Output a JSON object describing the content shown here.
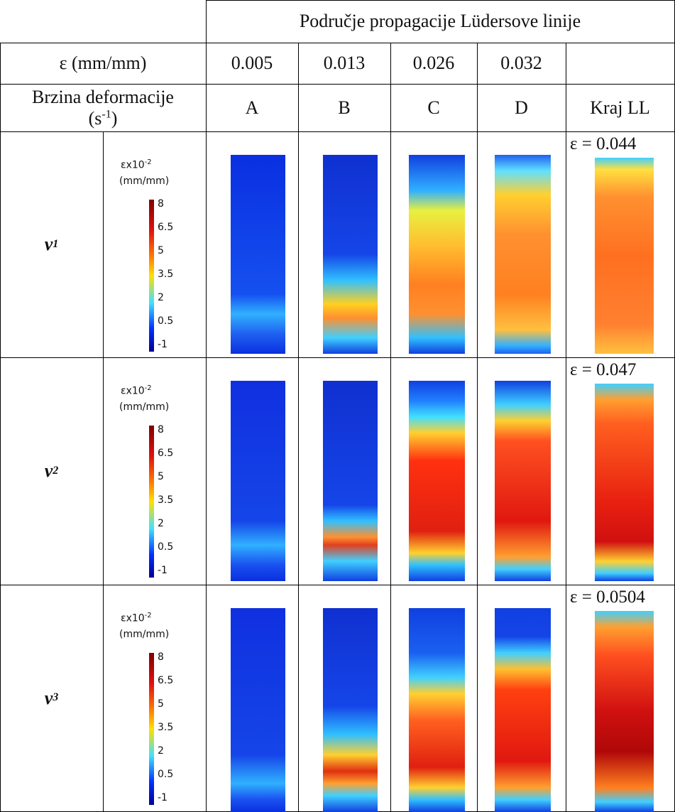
{
  "header": {
    "title": "Područje propagacije Lüdersove linije"
  },
  "table": {
    "strain_label": "ε (mm/mm)",
    "strains": [
      0.005,
      0.013,
      0.026,
      0.032
    ],
    "rate_label": "Brzina deformacije",
    "rate_unit_open": "(s",
    "rate_unit_exp": "-1",
    "rate_unit_close": ")",
    "stages": [
      "A",
      "B",
      "C",
      "D",
      "Kraj LL"
    ],
    "rows": [
      {
        "rate_symbol": "v",
        "rate_index": 1,
        "end_strain": "ε = 0.044"
      },
      {
        "rate_symbol": "v",
        "rate_index": 2,
        "end_strain": "ε = 0.047"
      },
      {
        "rate_symbol": "v",
        "rate_index": 3,
        "end_strain": "ε = 0.0504"
      }
    ]
  },
  "colorbar": {
    "label": "εx10",
    "exp": "-2",
    "unit": "(mm/mm)",
    "ticks": [
      8,
      6.5,
      5,
      3.5,
      2,
      0.5,
      -1
    ]
  }
}
